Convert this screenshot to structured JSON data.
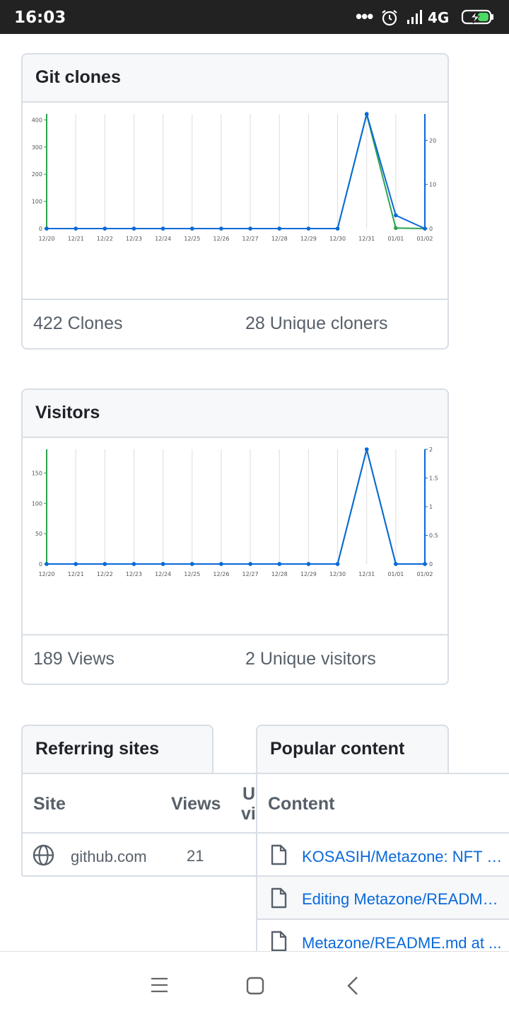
{
  "status_bar": {
    "time": "16:03",
    "dots": "•••",
    "network": "4G"
  },
  "icons": {
    "alarm": "alarm-clock-icon",
    "signal": "cellular-signal-icon",
    "battery": "battery-charging-icon",
    "globe": "globe-icon",
    "file": "file-icon",
    "menu": "menu-icon",
    "home": "home-square-icon",
    "back": "back-chevron-icon"
  },
  "colors": {
    "clones_series": "#2da44e",
    "unique_series": "#0969da",
    "link": "#0969da",
    "border": "#d8dee4"
  },
  "git_clones": {
    "title": "Git clones",
    "total_label": "422 Clones",
    "unique_label": "28 Unique cloners"
  },
  "visitors": {
    "title": "Visitors",
    "total_label": "189 Views",
    "unique_label": "2 Unique visitors"
  },
  "referring_sites": {
    "title": "Referring sites",
    "headers": {
      "site": "Site",
      "views": "Views",
      "unique_top": "U",
      "unique_bottom": "vi"
    },
    "rows": [
      {
        "site": "github.com",
        "views": "21"
      }
    ]
  },
  "popular_content": {
    "title": "Popular content",
    "header": "Content",
    "rows": [
      "KOSASIH/Metazone: NFT M...",
      "Editing Metazone/README....",
      "Metazone/README.md at ..."
    ]
  },
  "chart_data": [
    {
      "type": "line",
      "categories": [
        "12/20",
        "12/21",
        "12/22",
        "12/23",
        "12/24",
        "12/25",
        "12/26",
        "12/27",
        "12/28",
        "12/29",
        "12/30",
        "12/31",
        "01/01",
        "01/02"
      ],
      "left_axis": {
        "ticks": [
          0,
          100,
          200,
          300,
          400
        ],
        "ylim": [
          0,
          422
        ]
      },
      "right_axis": {
        "ticks": [
          0,
          10,
          20
        ],
        "ylim": [
          0,
          26
        ]
      },
      "series": [
        {
          "axis": "left",
          "color": "#2da44e",
          "values": [
            0,
            0,
            0,
            0,
            0,
            0,
            0,
            0,
            0,
            0,
            0,
            420,
            2,
            0
          ]
        },
        {
          "axis": "right",
          "color": "#0969da",
          "values": [
            0,
            0,
            0,
            0,
            0,
            0,
            0,
            0,
            0,
            0,
            0,
            26,
            3,
            0
          ]
        }
      ],
      "grid": true
    },
    {
      "type": "line",
      "categories": [
        "12/20",
        "12/21",
        "12/22",
        "12/23",
        "12/24",
        "12/25",
        "12/26",
        "12/27",
        "12/28",
        "12/29",
        "12/30",
        "12/31",
        "01/01",
        "01/02"
      ],
      "left_axis": {
        "ticks": [
          0,
          50,
          100,
          150
        ],
        "ylim": [
          0,
          189
        ]
      },
      "right_axis": {
        "ticks": [
          0,
          0.5,
          1,
          1.5,
          2
        ],
        "ylim": [
          0,
          2
        ]
      },
      "series": [
        {
          "axis": "left",
          "color": "#2da44e",
          "values": [
            0,
            0,
            0,
            0,
            0,
            0,
            0,
            0,
            0,
            0,
            0,
            189,
            0,
            0
          ]
        },
        {
          "axis": "right",
          "color": "#0969da",
          "values": [
            0,
            0,
            0,
            0,
            0,
            0,
            0,
            0,
            0,
            0,
            0,
            2,
            0,
            0
          ]
        }
      ],
      "grid": true
    }
  ]
}
